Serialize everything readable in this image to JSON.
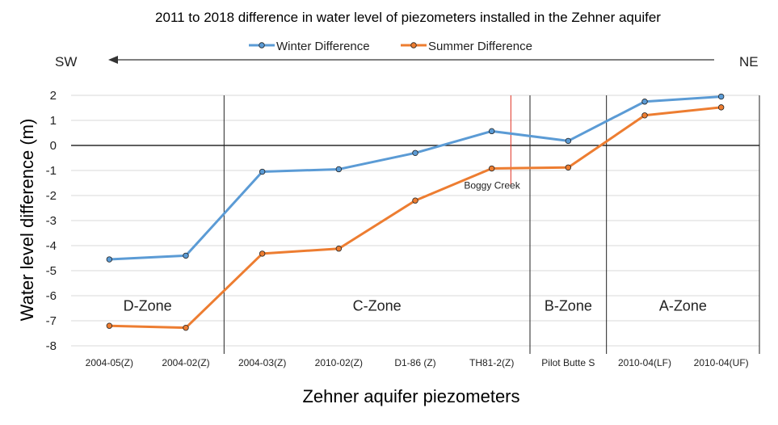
{
  "chart_data": {
    "type": "line",
    "title": "2011 to 2018 difference in water level of piezometers installed in the Zehner aquifer",
    "xlabel": "Zehner aquifer piezometers",
    "ylabel": "Water level difference (m)",
    "ylim": [
      -8,
      2
    ],
    "yticks": [
      2,
      1,
      0,
      -1,
      -2,
      -3,
      -4,
      -5,
      -6,
      -7,
      -8
    ],
    "grid": true,
    "legend_position": "top-center",
    "categories": [
      "2004-05(Z)",
      "2004-02(Z)",
      "2004-03(Z)",
      "2010-02(Z)",
      "D1-86 (Z)",
      "TH81-2(Z)",
      "Pilot Butte S",
      "2010-04(LF)",
      "2010-04(UF)"
    ],
    "series": [
      {
        "name": "Winter Difference",
        "color": "#5b9bd5",
        "values": [
          -4.55,
          -4.4,
          -1.05,
          -0.95,
          -0.3,
          0.57,
          0.18,
          1.75,
          1.95
        ]
      },
      {
        "name": "Summer Difference",
        "color": "#ed7d31",
        "values": [
          -7.2,
          -7.28,
          -4.32,
          -4.12,
          -2.2,
          -0.92,
          -0.88,
          1.2,
          1.52
        ]
      }
    ],
    "direction": {
      "left": "SW",
      "right": "NE"
    },
    "zones": [
      {
        "label": "D-Zone",
        "from": 0,
        "to": 1
      },
      {
        "label": "C-Zone",
        "from": 2,
        "to": 5
      },
      {
        "label": "B-Zone",
        "from": 6,
        "to": 6
      },
      {
        "label": "A-Zone",
        "from": 7,
        "to": 8
      }
    ],
    "zone_label_y": -6.4,
    "zone_boundaries": [
      1.5,
      5.5,
      6.5,
      8.5
    ],
    "annotation": {
      "text": "Boggy Creek",
      "at": 5.25,
      "from_y": 2,
      "to_y": -1.6
    }
  }
}
